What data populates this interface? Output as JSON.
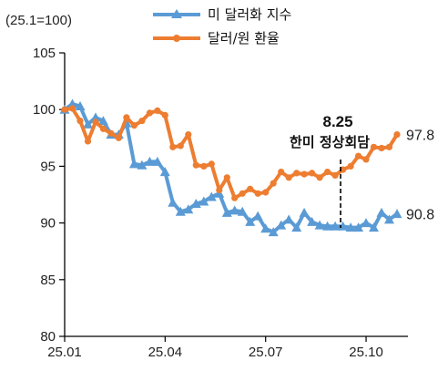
{
  "chart_data": {
    "type": "line",
    "unit_label": "(25.1=100)",
    "ylim": [
      80,
      105
    ],
    "yticks": [
      "80",
      "85",
      "90",
      "95",
      "100",
      "105"
    ],
    "xticks": [
      {
        "label": "25.01",
        "x": 0
      },
      {
        "label": "25.04",
        "x": 13
      },
      {
        "label": "25.07",
        "x": 26
      },
      {
        "label": "25.10",
        "x": 39
      }
    ],
    "x_range": [
      0,
      43
    ],
    "grid": false,
    "legend_position": "top",
    "series": [
      {
        "name": "미 달러화 지수",
        "color": "#5b9bd5",
        "marker": "triangle",
        "end_label": "90.8",
        "values": [
          100.0,
          100.5,
          100.3,
          98.7,
          99.3,
          99.0,
          97.8,
          97.8,
          98.8,
          95.2,
          95.1,
          95.4,
          95.4,
          94.5,
          91.8,
          91.0,
          91.2,
          91.7,
          91.9,
          92.3,
          92.6,
          90.9,
          91.1,
          91.0,
          90.1,
          90.6,
          89.5,
          89.2,
          89.8,
          90.3,
          89.6,
          90.9,
          90.1,
          89.8,
          89.7,
          89.7,
          89.7,
          89.6,
          89.6,
          90.0,
          89.6,
          90.9,
          90.3,
          90.8
        ]
      },
      {
        "name": "달러/원 환율",
        "color": "#ed7d31",
        "marker": "circle",
        "end_label": "97.8",
        "values": [
          100.0,
          100.1,
          99.0,
          97.2,
          98.9,
          98.3,
          97.9,
          97.5,
          99.3,
          98.6,
          99.0,
          99.7,
          99.9,
          99.5,
          96.7,
          96.8,
          97.8,
          95.1,
          95.0,
          95.2,
          92.9,
          94.0,
          92.2,
          92.6,
          93.0,
          92.6,
          92.7,
          93.5,
          94.5,
          94.0,
          94.4,
          94.3,
          94.4,
          94.0,
          94.5,
          94.2,
          94.7,
          95.0,
          95.9,
          95.6,
          96.7,
          96.6,
          96.7,
          97.8
        ]
      }
    ],
    "annotation": {
      "x": 35.7,
      "date": "8.25",
      "text": "한미 정상회담"
    }
  }
}
